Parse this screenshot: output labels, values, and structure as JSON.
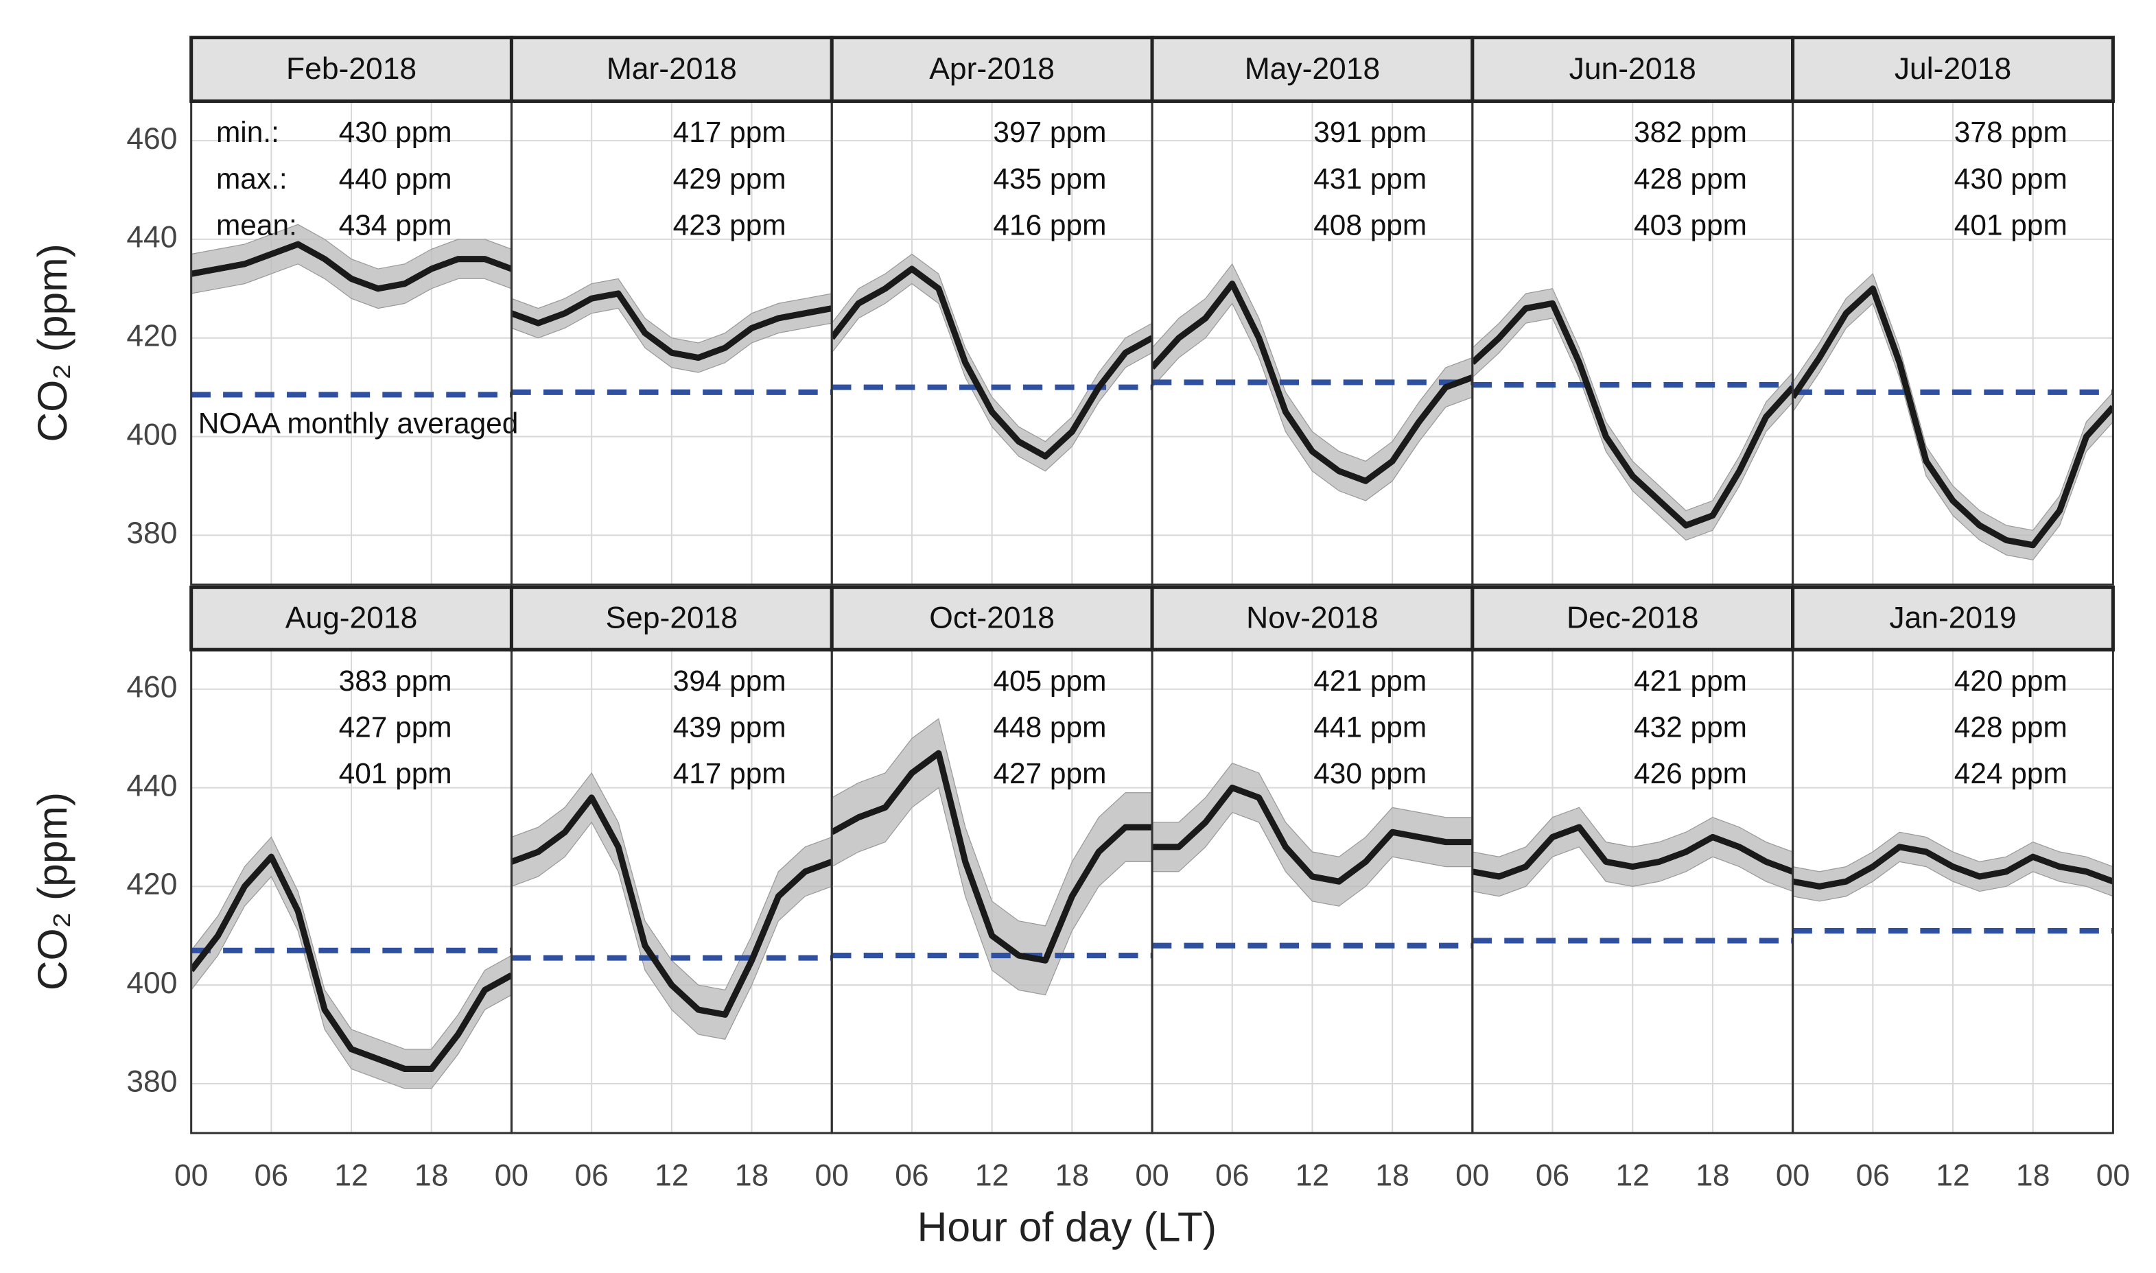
{
  "chart_data": {
    "type": "line",
    "xlabel": "Hour of day (LT)",
    "ylabel": "CO₂ (ppm)",
    "annotation": "NOAA monthly averaged",
    "stat_names": [
      "min.:",
      "max.:",
      "mean:"
    ],
    "xlim": [
      0,
      24
    ],
    "ylim": [
      370,
      468
    ],
    "xticks": [
      {
        "value": 0,
        "label": "00"
      },
      {
        "value": 6,
        "label": "06"
      },
      12,
      18,
      {
        "value": 24,
        "label": "00"
      }
    ],
    "yticks": [
      380,
      400,
      420,
      440,
      460
    ],
    "grid": true,
    "line_color": "#1a1a1a",
    "band_color": "#bdbdbd",
    "noaa_color": "#2f4fa0",
    "x": [
      0,
      2,
      4,
      6,
      8,
      10,
      12,
      14,
      16,
      18,
      20,
      22,
      24
    ],
    "panels": [
      {
        "title": "Feb-2018",
        "values": [
          433,
          434,
          435,
          437,
          439,
          436,
          432,
          430,
          431,
          434,
          436,
          436,
          434
        ],
        "spread": 4,
        "noaa": 408.5,
        "stats": [
          430,
          440,
          434
        ],
        "stat_labels": [
          "430 ppm",
          "440 ppm",
          "434 ppm"
        ]
      },
      {
        "title": "Mar-2018",
        "values": [
          425,
          423,
          425,
          428,
          429,
          421,
          417,
          416,
          418,
          422,
          424,
          425,
          426
        ],
        "spread": 3,
        "noaa": 409,
        "stats": [
          417,
          429,
          423
        ],
        "stat_labels": [
          "417 ppm",
          "429 ppm",
          "423 ppm"
        ]
      },
      {
        "title": "Apr-2018",
        "values": [
          420,
          427,
          430,
          434,
          430,
          415,
          405,
          399,
          396,
          401,
          410,
          417,
          420
        ],
        "spread": 3,
        "noaa": 410,
        "stats": [
          397,
          435,
          416
        ],
        "stat_labels": [
          "397 ppm",
          "435 ppm",
          "416 ppm"
        ]
      },
      {
        "title": "May-2018",
        "values": [
          414,
          420,
          424,
          431,
          420,
          405,
          397,
          393,
          391,
          395,
          403,
          410,
          412
        ],
        "spread": 4,
        "noaa": 411,
        "stats": [
          391,
          431,
          408
        ],
        "stat_labels": [
          "391 ppm",
          "431 ppm",
          "408 ppm"
        ]
      },
      {
        "title": "Jun-2018",
        "values": [
          415,
          420,
          426,
          427,
          415,
          400,
          392,
          387,
          382,
          384,
          393,
          404,
          410
        ],
        "spread": 3,
        "noaa": 410.5,
        "stats": [
          382,
          428,
          403
        ],
        "stat_labels": [
          "382 ppm",
          "428 ppm",
          "403 ppm"
        ]
      },
      {
        "title": "Jul-2018",
        "values": [
          408,
          416,
          425,
          430,
          415,
          395,
          387,
          382,
          379,
          378,
          385,
          400,
          406
        ],
        "spread": 3,
        "noaa": 409,
        "stats": [
          378,
          430,
          401
        ],
        "stat_labels": [
          "378 ppm",
          "430 ppm",
          "401 ppm"
        ]
      },
      {
        "title": "Aug-2018",
        "values": [
          403,
          410,
          420,
          426,
          415,
          395,
          387,
          385,
          383,
          383,
          390,
          399,
          402
        ],
        "spread": 4,
        "noaa": 407,
        "stats": [
          383,
          427,
          401
        ],
        "stat_labels": [
          "383 ppm",
          "427 ppm",
          "401 ppm"
        ]
      },
      {
        "title": "Sep-2018",
        "values": [
          425,
          427,
          431,
          438,
          428,
          408,
          400,
          395,
          394,
          405,
          418,
          423,
          425
        ],
        "spread": 5,
        "noaa": 405.5,
        "stats": [
          394,
          439,
          417
        ],
        "stat_labels": [
          "394 ppm",
          "439 ppm",
          "417 ppm"
        ]
      },
      {
        "title": "Oct-2018",
        "values": [
          431,
          434,
          436,
          443,
          447,
          425,
          410,
          406,
          405,
          418,
          427,
          432,
          432
        ],
        "spread": 7,
        "noaa": 406,
        "stats": [
          405,
          448,
          427
        ],
        "stat_labels": [
          "405 ppm",
          "448 ppm",
          "427 ppm"
        ]
      },
      {
        "title": "Nov-2018",
        "values": [
          428,
          428,
          433,
          440,
          438,
          428,
          422,
          421,
          425,
          431,
          430,
          429,
          429
        ],
        "spread": 5,
        "noaa": 408,
        "stats": [
          421,
          441,
          430
        ],
        "stat_labels": [
          "421 ppm",
          "441 ppm",
          "430 ppm"
        ]
      },
      {
        "title": "Dec-2018",
        "values": [
          423,
          422,
          424,
          430,
          432,
          425,
          424,
          425,
          427,
          430,
          428,
          425,
          423
        ],
        "spread": 4,
        "noaa": 409,
        "stats": [
          421,
          432,
          426
        ],
        "stat_labels": [
          "421 ppm",
          "432 ppm",
          "426 ppm"
        ]
      },
      {
        "title": "Jan-2019",
        "values": [
          421,
          420,
          421,
          424,
          428,
          427,
          424,
          422,
          423,
          426,
          424,
          423,
          421
        ],
        "spread": 3,
        "noaa": 411,
        "stats": [
          420,
          428,
          424
        ],
        "stat_labels": [
          "420 ppm",
          "428 ppm",
          "424 ppm"
        ]
      }
    ]
  }
}
